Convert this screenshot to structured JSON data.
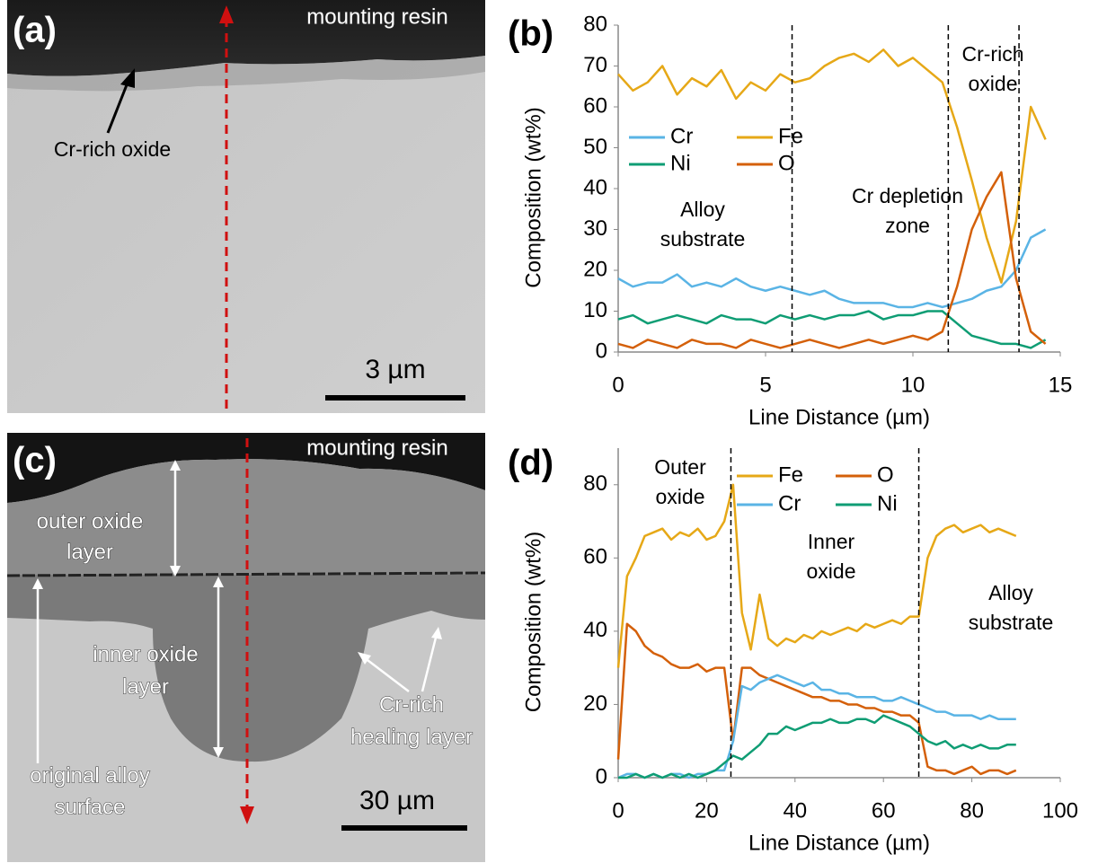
{
  "panels": [
    {
      "label": "(a)",
      "annotations": [
        [
          "mounting resin"
        ],
        [
          "Cr-rich oxide"
        ]
      ],
      "scale_bar": "3 µm"
    },
    {
      "label": "(c)",
      "annotations": [
        [
          "mounting resin"
        ],
        [
          "outer oxide",
          "layer"
        ],
        [
          "inner oxide",
          "layer"
        ],
        [
          "original alloy",
          "surface"
        ],
        [
          "Cr-rich",
          "healing layer"
        ]
      ],
      "scale_bar": "30 µm"
    }
  ],
  "chart_data": [
    {
      "type": "line",
      "panel_label": "(b)",
      "xlabel": "Line Distance (µm)",
      "ylabel": "Composition (wt%)",
      "xlim": [
        0,
        15
      ],
      "ylim": [
        0,
        80
      ],
      "xticks": [
        0,
        5,
        10,
        15
      ],
      "yticks": [
        0,
        10,
        20,
        30,
        40,
        50,
        60,
        70,
        80
      ],
      "vlines": [
        5.9,
        11.2,
        13.6
      ],
      "annotations": [
        [
          "Alloy",
          "substrate"
        ],
        [
          "Cr depletion",
          "zone"
        ],
        [
          "Cr-rich",
          "oxide"
        ]
      ],
      "x": [
        0,
        0.5,
        1,
        1.5,
        2,
        2.5,
        3,
        3.5,
        4,
        4.5,
        5,
        5.5,
        6,
        6.5,
        7,
        7.5,
        8,
        8.5,
        9,
        9.5,
        10,
        10.5,
        11,
        11.5,
        12,
        12.5,
        13,
        13.5,
        14,
        14.5
      ],
      "series": [
        {
          "name": "Cr",
          "color": "#5ab4e5",
          "values": [
            18,
            16,
            17,
            17,
            19,
            16,
            17,
            16,
            18,
            16,
            15,
            16,
            15,
            14,
            15,
            13,
            12,
            12,
            12,
            11,
            11,
            12,
            11,
            12,
            13,
            15,
            16,
            20,
            28,
            30
          ]
        },
        {
          "name": "Fe",
          "color": "#e6a817",
          "values": [
            68,
            64,
            66,
            70,
            63,
            67,
            65,
            69,
            62,
            66,
            64,
            68,
            66,
            67,
            70,
            72,
            73,
            71,
            74,
            70,
            72,
            69,
            66,
            55,
            42,
            28,
            17,
            32,
            60,
            52
          ]
        },
        {
          "name": "Ni",
          "color": "#0f9d74",
          "values": [
            8,
            9,
            7,
            8,
            9,
            8,
            7,
            9,
            8,
            8,
            7,
            9,
            8,
            9,
            8,
            9,
            9,
            10,
            8,
            9,
            9,
            10,
            10,
            7,
            4,
            3,
            2,
            2,
            1,
            3
          ]
        },
        {
          "name": "O",
          "color": "#d4600a",
          "values": [
            2,
            1,
            3,
            2,
            1,
            3,
            2,
            2,
            1,
            3,
            2,
            1,
            2,
            3,
            2,
            1,
            2,
            3,
            2,
            3,
            4,
            3,
            5,
            16,
            30,
            38,
            44,
            18,
            5,
            2
          ]
        }
      ]
    },
    {
      "type": "line",
      "panel_label": "(d)",
      "xlabel": "Line Distance (µm)",
      "ylabel": "Composition (wt%)",
      "xlim": [
        0,
        100
      ],
      "ylim": [
        0,
        90
      ],
      "xticks": [
        0,
        20,
        40,
        60,
        80,
        100
      ],
      "yticks": [
        0,
        20,
        40,
        60,
        80
      ],
      "vlines": [
        25.5,
        68
      ],
      "annotations": [
        [
          "Outer",
          "oxide"
        ],
        [
          "Inner",
          "oxide"
        ],
        [
          "Alloy",
          "substrate"
        ]
      ],
      "x": [
        0,
        2,
        4,
        6,
        8,
        10,
        12,
        14,
        16,
        18,
        20,
        22,
        24,
        26,
        28,
        30,
        32,
        34,
        36,
        38,
        40,
        42,
        44,
        46,
        48,
        50,
        52,
        54,
        56,
        58,
        60,
        62,
        64,
        66,
        68,
        70,
        72,
        74,
        76,
        78,
        80,
        82,
        84,
        86,
        88,
        90
      ],
      "series": [
        {
          "name": "Fe",
          "color": "#e6a817",
          "values": [
            30,
            55,
            60,
            66,
            67,
            68,
            65,
            67,
            66,
            68,
            65,
            66,
            70,
            80,
            45,
            35,
            50,
            38,
            36,
            38,
            37,
            39,
            38,
            40,
            39,
            40,
            41,
            40,
            42,
            41,
            42,
            43,
            42,
            44,
            44,
            60,
            66,
            68,
            69,
            67,
            68,
            69,
            67,
            68,
            67,
            66
          ]
        },
        {
          "name": "O",
          "color": "#d4600a",
          "values": [
            5,
            42,
            40,
            36,
            34,
            33,
            31,
            30,
            30,
            31,
            29,
            30,
            30,
            10,
            30,
            30,
            28,
            27,
            26,
            25,
            24,
            23,
            22,
            22,
            21,
            21,
            20,
            20,
            19,
            19,
            18,
            18,
            17,
            17,
            15,
            3,
            2,
            2,
            1,
            2,
            3,
            1,
            2,
            2,
            1,
            2
          ]
        },
        {
          "name": "Cr",
          "color": "#5ab4e5",
          "values": [
            0,
            1,
            1,
            0,
            1,
            0,
            1,
            1,
            0,
            1,
            1,
            2,
            2,
            10,
            25,
            24,
            26,
            27,
            28,
            27,
            26,
            25,
            26,
            24,
            24,
            23,
            23,
            22,
            22,
            22,
            21,
            21,
            22,
            21,
            20,
            19,
            18,
            18,
            17,
            17,
            17,
            16,
            17,
            16,
            16,
            16
          ]
        },
        {
          "name": "Ni",
          "color": "#0f9d74",
          "values": [
            0,
            0,
            1,
            0,
            1,
            0,
            1,
            0,
            1,
            0,
            1,
            2,
            4,
            6,
            5,
            7,
            9,
            12,
            12,
            14,
            13,
            14,
            15,
            15,
            16,
            15,
            15,
            16,
            16,
            15,
            17,
            16,
            15,
            14,
            12,
            10,
            9,
            10,
            8,
            9,
            8,
            9,
            8,
            8,
            9,
            9
          ]
        }
      ]
    }
  ]
}
